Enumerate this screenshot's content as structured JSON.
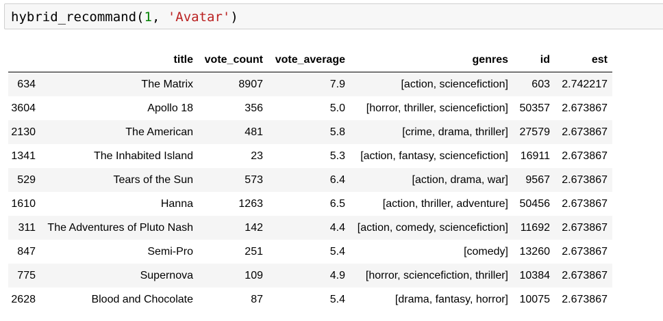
{
  "input": {
    "fn_name": "hybrid_recommand",
    "open_paren": "(",
    "arg_num": "1",
    "separator": ", ",
    "arg_str": "'Avatar'",
    "close_paren": ")"
  },
  "table": {
    "columns": [
      "",
      "title",
      "vote_count",
      "vote_average",
      "genres",
      "id",
      "est"
    ],
    "rows": [
      [
        "634",
        "The Matrix",
        "8907",
        "7.9",
        "[action, sciencefiction]",
        "603",
        "2.742217"
      ],
      [
        "3604",
        "Apollo 18",
        "356",
        "5.0",
        "[horror, thriller, sciencefiction]",
        "50357",
        "2.673867"
      ],
      [
        "2130",
        "The American",
        "481",
        "5.8",
        "[crime, drama, thriller]",
        "27579",
        "2.673867"
      ],
      [
        "1341",
        "The Inhabited Island",
        "23",
        "5.3",
        "[action, fantasy, sciencefiction]",
        "16911",
        "2.673867"
      ],
      [
        "529",
        "Tears of the Sun",
        "573",
        "6.4",
        "[action, drama, war]",
        "9567",
        "2.673867"
      ],
      [
        "1610",
        "Hanna",
        "1263",
        "6.5",
        "[action, thriller, adventure]",
        "50456",
        "2.673867"
      ],
      [
        "311",
        "The Adventures of Pluto Nash",
        "142",
        "4.4",
        "[action, comedy, sciencefiction]",
        "11692",
        "2.673867"
      ],
      [
        "847",
        "Semi-Pro",
        "251",
        "5.4",
        "[comedy]",
        "13260",
        "2.673867"
      ],
      [
        "775",
        "Supernova",
        "109",
        "4.9",
        "[horror, sciencefiction, thriller]",
        "10384",
        "2.673867"
      ],
      [
        "2628",
        "Blood and Chocolate",
        "87",
        "5.4",
        "[drama, fantasy, horror]",
        "10075",
        "2.673867"
      ]
    ]
  }
}
